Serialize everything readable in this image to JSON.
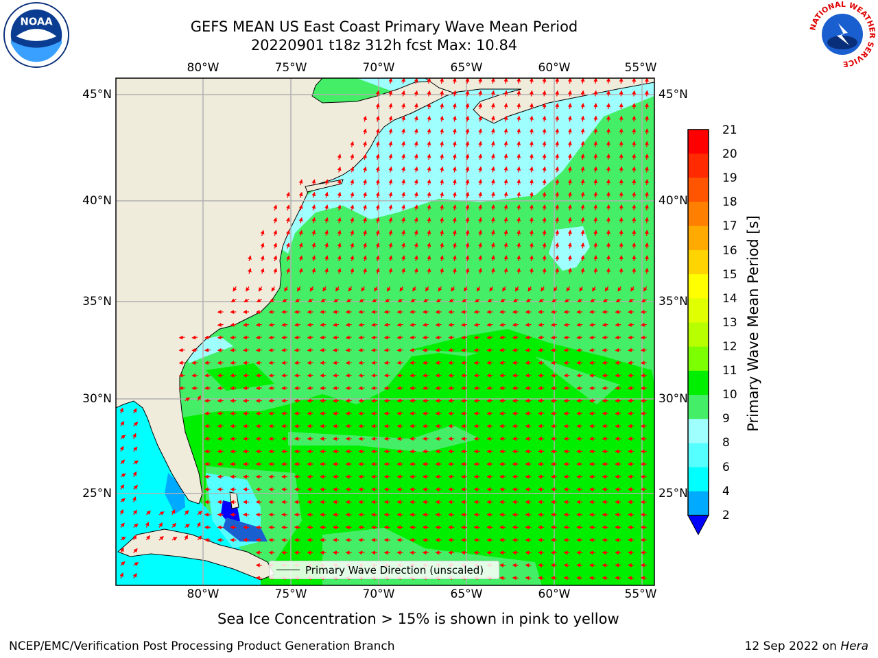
{
  "header": {
    "title_line1": "GEFS MEAN US East Coast Primary Wave Mean Period",
    "title_line2": "20220901 t18z 312h fcst   Max: 10.84"
  },
  "logos": {
    "left": "NOAA",
    "right_ring_text": "NATIONAL WEATHER SERVICE"
  },
  "map": {
    "lon_labels": [
      "80°W",
      "75°W",
      "70°W",
      "65°W",
      "60°W",
      "55°W"
    ],
    "lat_labels": [
      "45°N",
      "40°N",
      "35°N",
      "30°N",
      "25°N"
    ],
    "legend_label": "Primary Wave Direction (unscaled)",
    "colors": {
      "land": "#efecdc",
      "grid": "#b0b0b0",
      "arrow": "#ff0000",
      "coast": "#000000"
    }
  },
  "colorbar": {
    "title": "Primary Wave Mean Period [s]",
    "ticks": [
      "21",
      "20",
      "19",
      "18",
      "17",
      "16",
      "15",
      "14",
      "13",
      "12",
      "11",
      "10",
      "9",
      "8",
      "6",
      "4",
      "2"
    ],
    "colors": [
      "#ff0000",
      "#ff2a00",
      "#ff5500",
      "#ff8000",
      "#ffaa00",
      "#ffd400",
      "#ffff00",
      "#e0ff00",
      "#b8ff00",
      "#7cff00",
      "#00ee00",
      "#44ee66",
      "#9fffff",
      "#55ffff",
      "#00ffff",
      "#00aaff",
      "#0000ff"
    ]
  },
  "chart_data": {
    "type": "heatmap",
    "title": "GEFS MEAN US East Coast Primary Wave Mean Period",
    "subtitle": "20220901 t18z 312h fcst   Max: 10.84",
    "variable": "Primary Wave Mean Period [s]",
    "max_value": 10.84,
    "lon_range": [
      -85,
      -54
    ],
    "lat_range": [
      20.5,
      46
    ],
    "colorbar_levels": [
      2,
      4,
      6,
      8,
      9,
      10,
      11,
      12,
      13,
      14,
      15,
      16,
      17,
      18,
      19,
      20,
      21
    ],
    "gridlines_lon": [
      -80,
      -75,
      -70,
      -65,
      -60,
      -55
    ],
    "gridlines_lat": [
      25,
      30,
      35,
      40,
      45
    ],
    "grid": true,
    "legend": "Primary Wave Direction (unscaled)"
  },
  "footer": {
    "note": "Sea Ice Concentration > 15% is shown in pink to yellow",
    "credit": "NCEP/EMC/Verification Post Processing Product Generation Branch",
    "date_prefix": "12 Sep 2022 on ",
    "machine": "Hera"
  }
}
